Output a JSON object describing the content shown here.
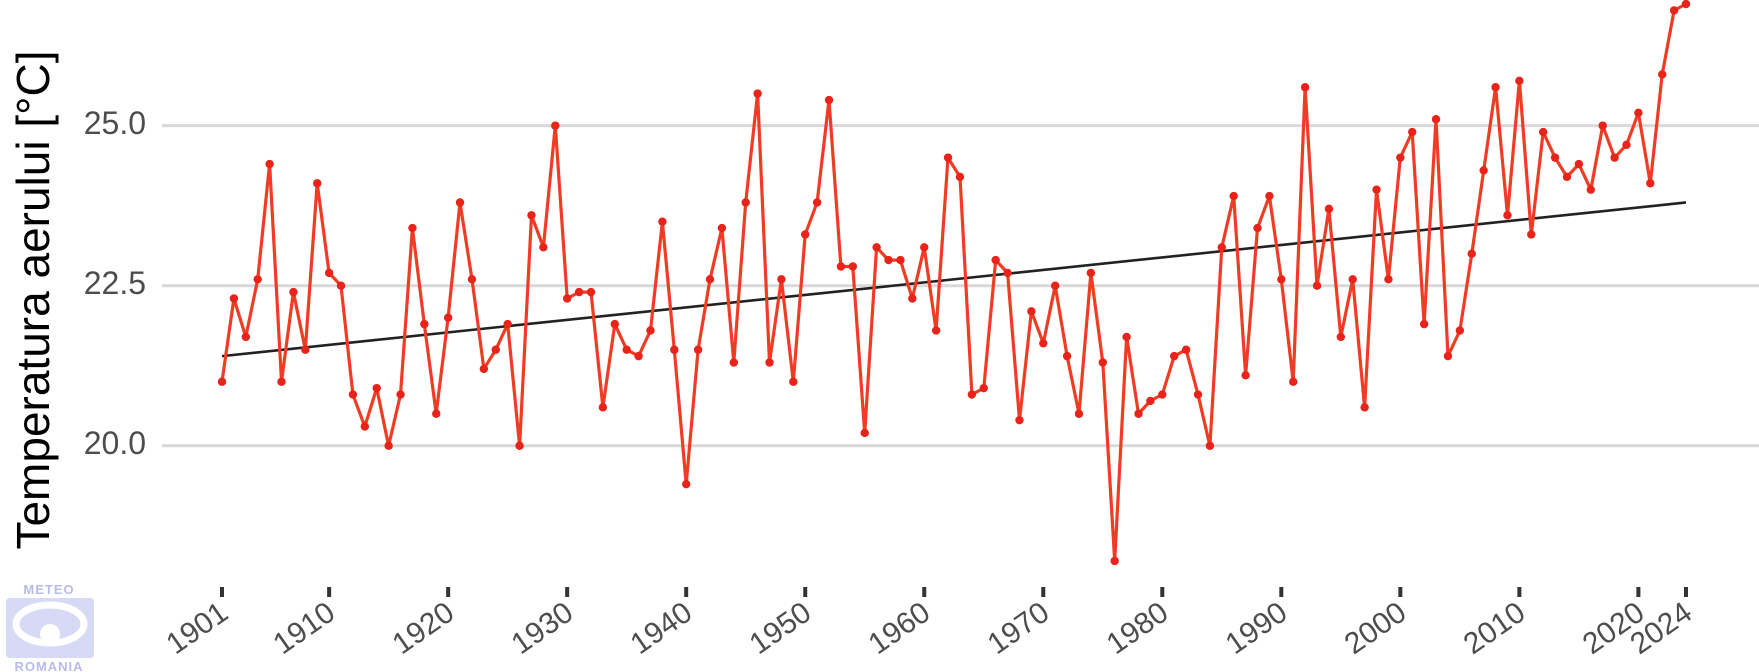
{
  "chart_data": {
    "type": "line",
    "title": "",
    "xlabel": "",
    "ylabel": "Temperatura aerului [°C]",
    "xlim": [
      1901,
      2024
    ],
    "ylim": [
      18.2,
      26.9
    ],
    "yticks": [
      20.0,
      22.5,
      25.0
    ],
    "ytick_labels": [
      "20.0",
      "22.5",
      "25.0"
    ],
    "xticks": [
      1901,
      1910,
      1920,
      1930,
      1940,
      1950,
      1960,
      1970,
      1980,
      1990,
      2000,
      2010,
      2020,
      2024
    ],
    "grid": "horizontal major",
    "legend": "none",
    "line_color": "#f03c24",
    "point_color": "#e8231a",
    "trend_color": "#222222",
    "x": [
      1901,
      1902,
      1903,
      1904,
      1905,
      1906,
      1907,
      1908,
      1909,
      1910,
      1911,
      1912,
      1913,
      1914,
      1915,
      1916,
      1917,
      1918,
      1919,
      1920,
      1921,
      1922,
      1923,
      1924,
      1925,
      1926,
      1927,
      1928,
      1929,
      1930,
      1931,
      1932,
      1933,
      1934,
      1935,
      1936,
      1937,
      1938,
      1939,
      1940,
      1941,
      1942,
      1943,
      1944,
      1945,
      1946,
      1947,
      1948,
      1949,
      1950,
      1951,
      1952,
      1953,
      1954,
      1955,
      1956,
      1957,
      1958,
      1959,
      1960,
      1961,
      1962,
      1963,
      1964,
      1965,
      1966,
      1967,
      1968,
      1969,
      1970,
      1971,
      1972,
      1973,
      1974,
      1975,
      1976,
      1977,
      1978,
      1979,
      1980,
      1981,
      1982,
      1983,
      1984,
      1985,
      1986,
      1987,
      1988,
      1989,
      1990,
      1991,
      1992,
      1993,
      1994,
      1995,
      1996,
      1997,
      1998,
      1999,
      2000,
      2001,
      2002,
      2003,
      2004,
      2005,
      2006,
      2007,
      2008,
      2009,
      2010,
      2011,
      2012,
      2013,
      2014,
      2015,
      2016,
      2017,
      2018,
      2019,
      2020,
      2021,
      2022,
      2023,
      2024
    ],
    "series": [
      {
        "values": [
          21.0,
          22.3,
          21.7,
          22.6,
          24.4,
          21.0,
          22.4,
          21.5,
          24.1,
          22.7,
          22.5,
          20.8,
          20.3,
          20.9,
          20.0,
          20.8,
          23.4,
          21.9,
          20.5,
          22.0,
          23.8,
          22.6,
          21.2,
          21.5,
          21.9,
          20.0,
          23.6,
          23.1,
          25.0,
          22.3,
          22.4,
          22.4,
          20.6,
          21.9,
          21.5,
          21.4,
          21.8,
          23.5,
          21.5,
          19.4,
          21.5,
          22.6,
          23.4,
          21.3,
          23.8,
          25.5,
          21.3,
          22.6,
          21.0,
          23.3,
          23.8,
          25.4,
          22.8,
          22.8,
          20.2,
          23.1,
          22.9,
          22.9,
          22.3,
          23.1,
          21.8,
          24.5,
          24.2,
          20.8,
          20.9,
          22.9,
          22.7,
          20.4,
          22.1,
          21.6,
          22.5,
          21.4,
          20.5,
          22.7,
          21.3,
          18.2,
          21.7,
          20.5,
          20.7,
          20.8,
          21.4,
          21.5,
          20.8,
          20.0,
          23.1,
          23.9,
          21.1,
          23.4,
          23.9,
          22.6,
          21.0,
          25.6,
          22.5,
          23.7,
          21.7,
          22.6,
          20.6,
          24.0,
          22.6,
          24.5,
          24.9,
          21.9,
          25.1,
          21.4,
          21.8,
          23.0,
          24.3,
          25.6,
          23.6,
          25.7,
          23.3,
          24.9,
          24.5,
          24.2,
          24.4,
          24.0,
          25.0,
          24.5,
          24.7,
          25.2,
          24.1,
          25.8,
          26.8,
          26.9
        ]
      }
    ],
    "trend": {
      "x": [
        1901,
        2024
      ],
      "y": [
        21.4,
        23.8
      ]
    },
    "logo": {
      "top": "METEO",
      "bottom": "ROMANIA"
    }
  }
}
